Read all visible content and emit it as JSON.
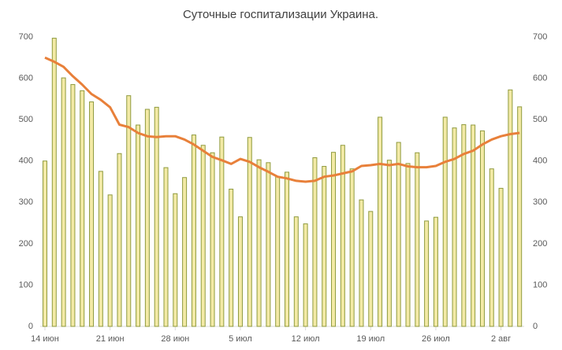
{
  "chart_data": {
    "type": "combo",
    "title": "Суточные госпитализации Украина.",
    "categories": [
      "14 июн",
      null,
      null,
      null,
      null,
      null,
      null,
      "21 июн",
      null,
      null,
      null,
      null,
      null,
      null,
      "28 июн",
      null,
      null,
      null,
      null,
      null,
      null,
      "5 июл",
      null,
      null,
      null,
      null,
      null,
      null,
      "12 июл",
      null,
      null,
      null,
      null,
      null,
      null,
      "19 июл",
      null,
      null,
      null,
      null,
      null,
      null,
      "26 июл",
      null,
      null,
      null,
      null,
      null,
      null,
      "2 авг",
      null,
      null
    ],
    "series": [
      {
        "type": "bar",
        "color": "#f3eaa6",
        "edge_color": "#8f9a3e",
        "values": [
          400,
          697,
          601,
          585,
          570,
          543,
          375,
          318,
          418,
          558,
          487,
          525,
          530,
          384,
          321,
          360,
          463,
          438,
          420,
          458,
          332,
          265,
          457,
          403,
          396,
          362,
          373,
          265,
          248,
          408,
          387,
          421,
          438,
          381,
          306,
          278,
          506,
          402,
          445,
          394,
          420,
          255,
          264,
          506,
          480,
          488,
          487,
          473,
          381,
          334,
          572,
          531
        ]
      },
      {
        "type": "line",
        "axis": "y2",
        "color": "#e8803a",
        "values": [
          650,
          640,
          628,
          605,
          585,
          562,
          548,
          530,
          488,
          482,
          468,
          460,
          458,
          460,
          460,
          452,
          440,
          425,
          410,
          402,
          393,
          405,
          398,
          385,
          374,
          362,
          358,
          352,
          350,
          352,
          362,
          365,
          370,
          375,
          388,
          390,
          393,
          390,
          393,
          387,
          385,
          385,
          388,
          398,
          405,
          417,
          425,
          440,
          452,
          460,
          465,
          468
        ]
      }
    ],
    "ylim": [
      0,
      700
    ],
    "yticks": [
      0,
      100,
      200,
      300,
      400,
      500,
      600,
      700
    ],
    "y2lim": [
      0,
      700
    ],
    "y2ticks": [
      0,
      100,
      200,
      300,
      400,
      500,
      600,
      700
    ]
  }
}
